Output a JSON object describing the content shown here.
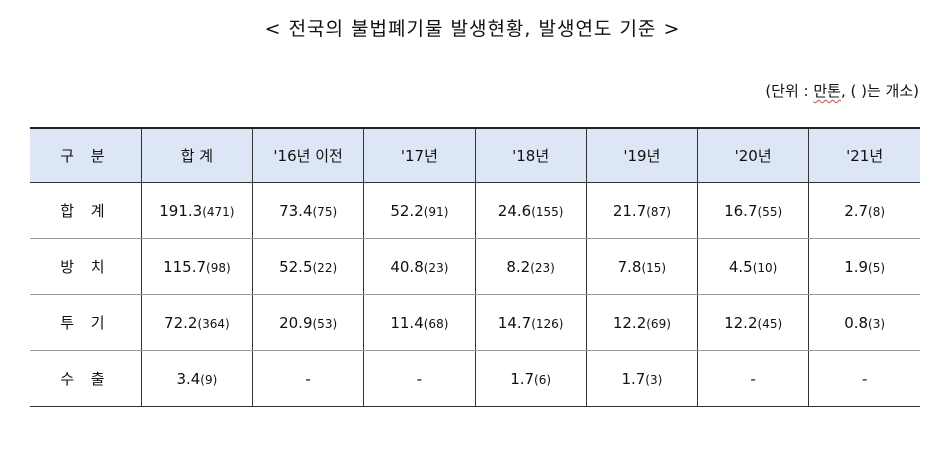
{
  "title": "< 전국의 불법폐기물 발생현황, 발생연도 기준 >",
  "unit": {
    "prefix": "(단위 : ",
    "ton": "만톤",
    "suffix": ", ( )는 개소)"
  },
  "table": {
    "headers": [
      "구 분",
      "합 계",
      "'16년 이전",
      "'17년",
      "'18년",
      "'19년",
      "'20년",
      "'21년"
    ],
    "rows": [
      {
        "label": "합 계",
        "cells": [
          {
            "v": "191.3",
            "c": "(471)"
          },
          {
            "v": "73.4",
            "c": "(75)"
          },
          {
            "v": "52.2",
            "c": "(91)"
          },
          {
            "v": "24.6",
            "c": "(155)"
          },
          {
            "v": "21.7",
            "c": "(87)"
          },
          {
            "v": "16.7",
            "c": "(55)"
          },
          {
            "v": "2.7",
            "c": "(8)"
          }
        ]
      },
      {
        "label": "방 치",
        "cells": [
          {
            "v": "115.7",
            "c": "(98)"
          },
          {
            "v": "52.5",
            "c": "(22)"
          },
          {
            "v": "40.8",
            "c": "(23)"
          },
          {
            "v": "8.2",
            "c": "(23)"
          },
          {
            "v": "7.8",
            "c": "(15)"
          },
          {
            "v": "4.5",
            "c": "(10)"
          },
          {
            "v": "1.9",
            "c": "(5)"
          }
        ]
      },
      {
        "label": "투 기",
        "cells": [
          {
            "v": "72.2",
            "c": "(364)"
          },
          {
            "v": "20.9",
            "c": "(53)"
          },
          {
            "v": "11.4",
            "c": "(68)"
          },
          {
            "v": "14.7",
            "c": "(126)"
          },
          {
            "v": "12.2",
            "c": "(69)"
          },
          {
            "v": "12.2",
            "c": "(45)"
          },
          {
            "v": "0.8",
            "c": "(3)"
          }
        ]
      },
      {
        "label": "수 출",
        "cells": [
          {
            "v": "3.4",
            "c": "(9)"
          },
          {
            "v": "-",
            "c": ""
          },
          {
            "v": "-",
            "c": ""
          },
          {
            "v": "1.7",
            "c": "(6)"
          },
          {
            "v": "1.7",
            "c": "(3)"
          },
          {
            "v": "-",
            "c": ""
          },
          {
            "v": "-",
            "c": ""
          }
        ]
      }
    ]
  }
}
